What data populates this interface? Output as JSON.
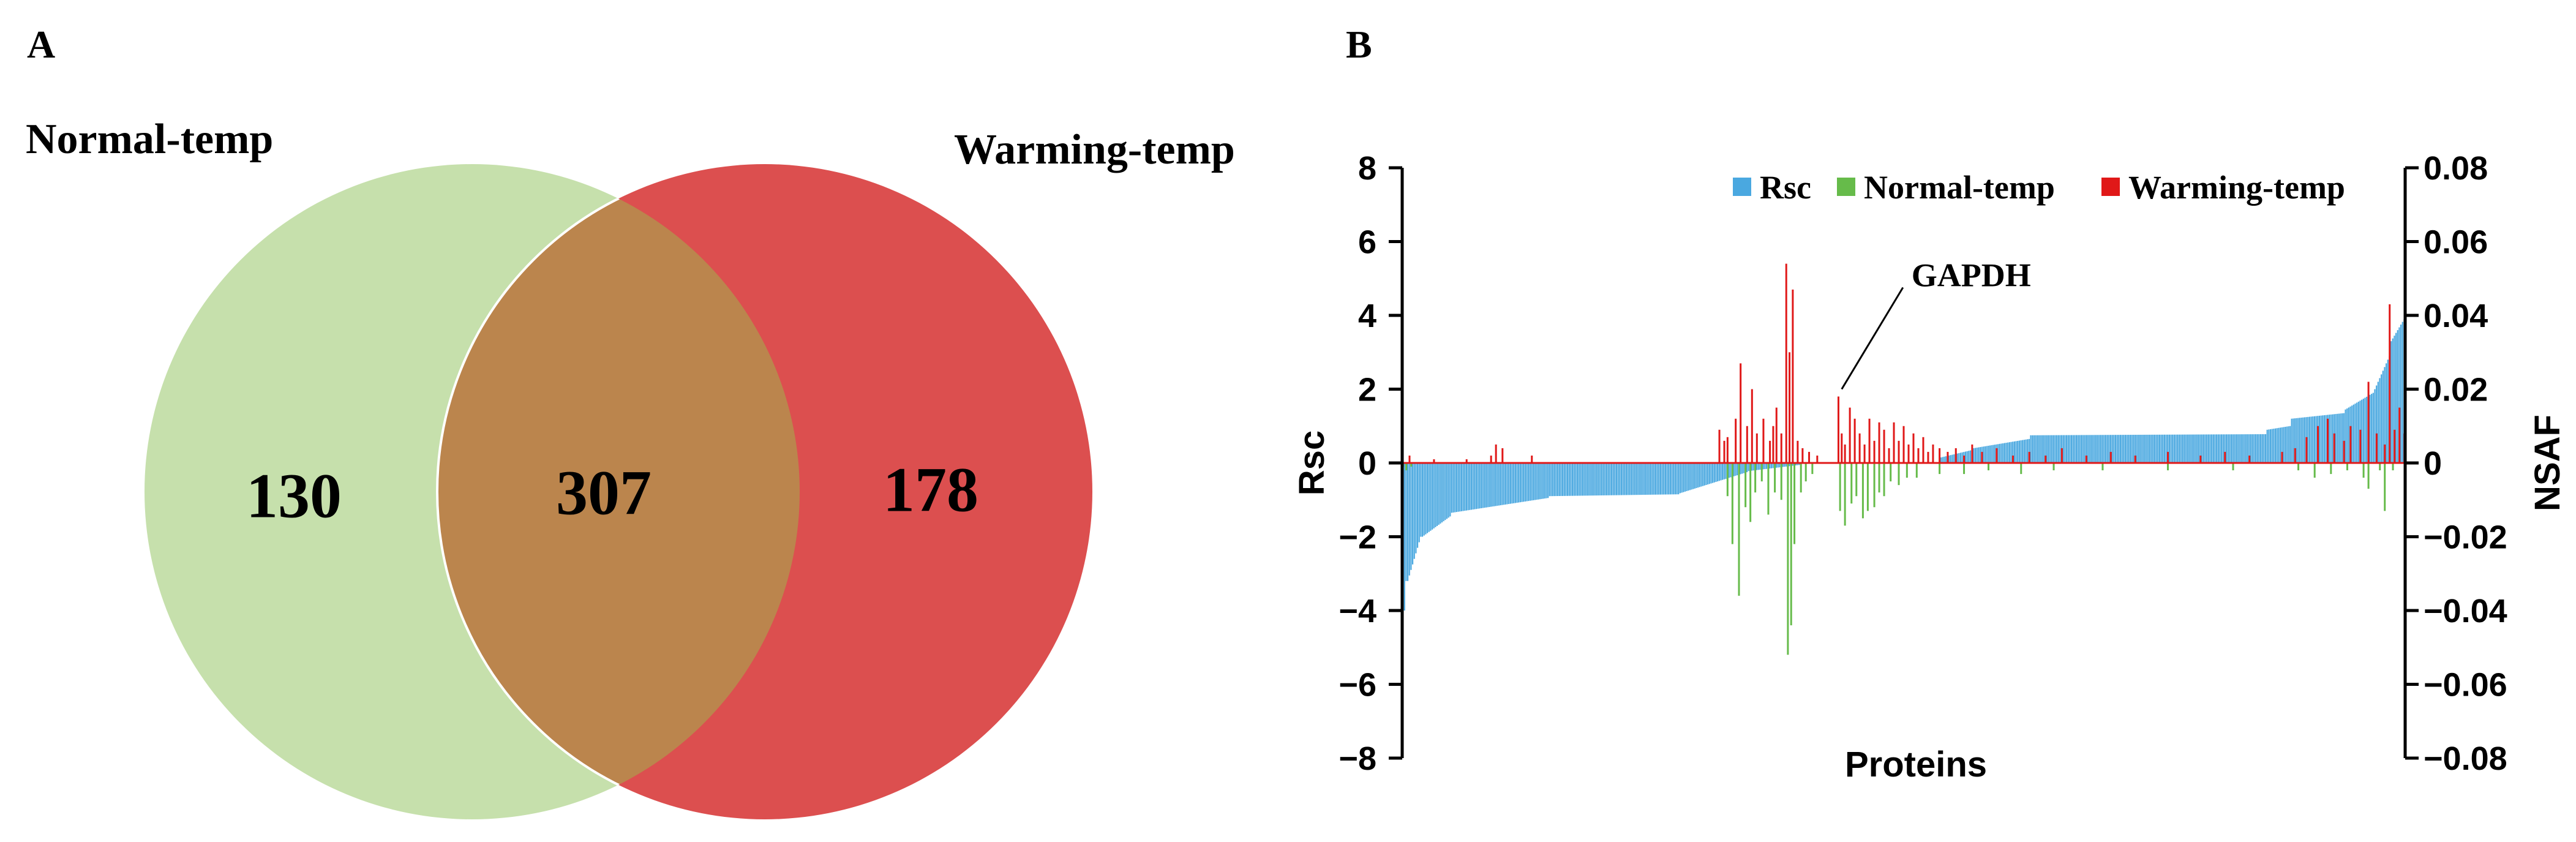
{
  "panel_a": {
    "label": "A",
    "set_left": "Normal-temp",
    "set_right": "Warming-temp",
    "only_left": "130",
    "overlap": "307",
    "only_right": "178",
    "color_left": "#c6e0ac",
    "color_right": "#dc4f4f",
    "color_overlap": "#bb854d"
  },
  "panel_b": {
    "label": "B"
  },
  "chart_data": [
    {
      "type": "venn",
      "sets": [
        "Normal-temp",
        "Warming-temp"
      ],
      "values": {
        "Normal-temp only": 130,
        "both": 307,
        "Warming-temp only": 178
      }
    },
    {
      "type": "bar",
      "xlabel": "Proteins",
      "ylabel": "Rsc",
      "y2label": "NSAF",
      "ylim": [
        -8,
        8
      ],
      "y2lim": [
        -0.08,
        0.08
      ],
      "yticks": [
        "8",
        "6",
        "4",
        "2",
        "0",
        "−2",
        "−4",
        "−6",
        "−8"
      ],
      "y2ticks": [
        "0.08",
        "0.06",
        "0.04",
        "0.02",
        "0",
        "−0.02",
        "−0.04",
        "−0.06",
        "−0.08"
      ],
      "legend": {
        "position": "top-right",
        "entries": [
          "Rsc",
          "Normal-temp",
          "Warming-temp"
        ]
      },
      "colors": {
        "Rsc": "#4aa8e0",
        "Normal-temp": "#66bb4a",
        "Warming-temp": "#e01818"
      },
      "n_proteins": 615,
      "rsc_segments": [
        {
          "from": 1,
          "to": 3,
          "start": -4.8,
          "end": -3.2
        },
        {
          "from": 4,
          "to": 12,
          "start": -3.2,
          "end": -2.0
        },
        {
          "from": 13,
          "to": 30,
          "start": -2.0,
          "end": -1.45
        },
        {
          "from": 31,
          "to": 90,
          "start": -1.35,
          "end": -0.95
        },
        {
          "from": 91,
          "to": 170,
          "start": -0.9,
          "end": -0.85
        },
        {
          "from": 171,
          "to": 212,
          "start": -0.82,
          "end": -0.25
        },
        {
          "from": 213,
          "to": 245,
          "start": -0.22,
          "end": -0.05
        },
        {
          "from": 246,
          "to": 330,
          "start": 0.0,
          "end": 0.0
        },
        {
          "from": 331,
          "to": 350,
          "start": 0.15,
          "end": 0.35
        },
        {
          "from": 351,
          "to": 385,
          "start": 0.4,
          "end": 0.65
        },
        {
          "from": 386,
          "to": 530,
          "start": 0.75,
          "end": 0.78
        },
        {
          "from": 531,
          "to": 545,
          "start": 0.9,
          "end": 1.0
        },
        {
          "from": 546,
          "to": 578,
          "start": 1.2,
          "end": 1.35
        },
        {
          "from": 579,
          "to": 596,
          "start": 1.45,
          "end": 1.9
        },
        {
          "from": 597,
          "to": 606,
          "start": 2.0,
          "end": 2.9
        },
        {
          "from": 607,
          "to": 615,
          "start": 3.3,
          "end": 3.9
        }
      ],
      "warming_nsaf_spikes": [
        [
          5,
          0.002
        ],
        [
          20,
          0.001
        ],
        [
          40,
          0.001
        ],
        [
          55,
          0.002
        ],
        [
          58,
          0.005
        ],
        [
          62,
          0.004
        ],
        [
          80,
          0.002
        ],
        [
          195,
          0.009
        ],
        [
          198,
          0.006
        ],
        [
          200,
          0.007
        ],
        [
          205,
          0.012
        ],
        [
          208,
          0.027
        ],
        [
          212,
          0.01
        ],
        [
          215,
          0.02
        ],
        [
          218,
          0.008
        ],
        [
          222,
          0.012
        ],
        [
          226,
          0.006
        ],
        [
          228,
          0.01
        ],
        [
          230,
          0.015
        ],
        [
          233,
          0.008
        ],
        [
          236,
          0.054
        ],
        [
          238,
          0.03
        ],
        [
          240,
          0.047
        ],
        [
          243,
          0.006
        ],
        [
          246,
          0.004
        ],
        [
          250,
          0.003
        ],
        [
          255,
          0.002
        ],
        [
          268,
          0.018
        ],
        [
          270,
          0.008
        ],
        [
          272,
          0.005
        ],
        [
          275,
          0.015
        ],
        [
          278,
          0.012
        ],
        [
          281,
          0.008
        ],
        [
          284,
          0.005
        ],
        [
          287,
          0.012
        ],
        [
          290,
          0.006
        ],
        [
          293,
          0.011
        ],
        [
          296,
          0.009
        ],
        [
          299,
          0.004
        ],
        [
          302,
          0.011
        ],
        [
          305,
          0.006
        ],
        [
          308,
          0.01
        ],
        [
          311,
          0.005
        ],
        [
          314,
          0.008
        ],
        [
          317,
          0.004
        ],
        [
          320,
          0.007
        ],
        [
          323,
          0.003
        ],
        [
          326,
          0.005
        ],
        [
          330,
          0.004
        ],
        [
          335,
          0.003
        ],
        [
          340,
          0.004
        ],
        [
          345,
          0.002
        ],
        [
          350,
          0.005
        ],
        [
          356,
          0.003
        ],
        [
          365,
          0.004
        ],
        [
          375,
          0.002
        ],
        [
          385,
          0.003
        ],
        [
          395,
          0.002
        ],
        [
          405,
          0.004
        ],
        [
          420,
          0.002
        ],
        [
          435,
          0.003
        ],
        [
          450,
          0.002
        ],
        [
          470,
          0.003
        ],
        [
          490,
          0.002
        ],
        [
          505,
          0.003
        ],
        [
          520,
          0.002
        ],
        [
          540,
          0.003
        ],
        [
          548,
          0.004
        ],
        [
          555,
          0.007
        ],
        [
          562,
          0.01
        ],
        [
          568,
          0.012
        ],
        [
          572,
          0.008
        ],
        [
          578,
          0.006
        ],
        [
          582,
          0.01
        ],
        [
          588,
          0.009
        ],
        [
          593,
          0.022
        ],
        [
          598,
          0.008
        ],
        [
          603,
          0.005
        ],
        [
          606,
          0.043
        ],
        [
          609,
          0.009
        ],
        [
          612,
          0.015
        ],
        [
          615,
          0.008
        ]
      ],
      "normal_nsaf_spikes": [
        [
          1,
          -0.001
        ],
        [
          3,
          -0.002
        ],
        [
          6,
          -0.001
        ],
        [
          200,
          -0.009
        ],
        [
          203,
          -0.022
        ],
        [
          207,
          -0.036
        ],
        [
          211,
          -0.012
        ],
        [
          214,
          -0.016
        ],
        [
          217,
          -0.008
        ],
        [
          221,
          -0.005
        ],
        [
          225,
          -0.014
        ],
        [
          229,
          -0.008
        ],
        [
          233,
          -0.01
        ],
        [
          237,
          -0.052
        ],
        [
          239,
          -0.044
        ],
        [
          241,
          -0.022
        ],
        [
          245,
          -0.008
        ],
        [
          248,
          -0.005
        ],
        [
          252,
          -0.003
        ],
        [
          269,
          -0.013
        ],
        [
          272,
          -0.017
        ],
        [
          276,
          -0.011
        ],
        [
          279,
          -0.009
        ],
        [
          283,
          -0.015
        ],
        [
          286,
          -0.013
        ],
        [
          290,
          -0.012
        ],
        [
          293,
          -0.008
        ],
        [
          296,
          -0.009
        ],
        [
          300,
          -0.005
        ],
        [
          305,
          -0.006
        ],
        [
          310,
          -0.004
        ],
        [
          316,
          -0.004
        ],
        [
          330,
          -0.003
        ],
        [
          345,
          -0.003
        ],
        [
          360,
          -0.002
        ],
        [
          380,
          -0.003
        ],
        [
          400,
          -0.002
        ],
        [
          430,
          -0.002
        ],
        [
          470,
          -0.002
        ],
        [
          510,
          -0.002
        ],
        [
          550,
          -0.002
        ],
        [
          560,
          -0.004
        ],
        [
          570,
          -0.003
        ],
        [
          580,
          -0.002
        ],
        [
          590,
          -0.004
        ],
        [
          593,
          -0.007
        ],
        [
          600,
          -0.002
        ],
        [
          603,
          -0.013
        ],
        [
          608,
          -0.002
        ]
      ],
      "annotation": {
        "text": "GAPDH",
        "protein": 270,
        "value": 2.0
      }
    }
  ]
}
